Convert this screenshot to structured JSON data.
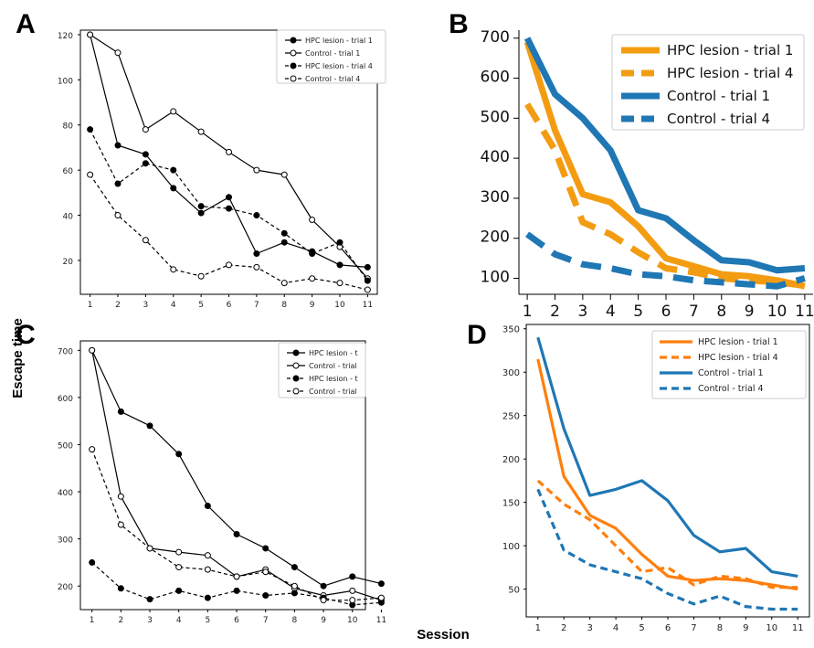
{
  "figure": {
    "y_label": "Escape time",
    "x_label": "Session"
  },
  "chart_data": [
    {
      "panel": "A",
      "type": "line",
      "x": [
        1,
        2,
        3,
        4,
        5,
        6,
        7,
        8,
        9,
        10,
        11
      ],
      "ylim": [
        5,
        122
      ],
      "yticks": [
        20,
        40,
        60,
        80,
        100,
        120
      ],
      "legend_position": "top-right",
      "series": [
        {
          "name": "HPC lesion - trial 1",
          "values": [
            120,
            71,
            67,
            52,
            41,
            48,
            23,
            28,
            24,
            18,
            17
          ],
          "color": "#000000",
          "dashed": false,
          "marker": "filled"
        },
        {
          "name": "Control - trial 1",
          "values": [
            120,
            112,
            78,
            86,
            77,
            68,
            60,
            58,
            38,
            26,
            12
          ],
          "color": "#000000",
          "dashed": false,
          "marker": "open"
        },
        {
          "name": "HPC lesion - trial 4",
          "values": [
            78,
            54,
            63,
            60,
            44,
            43,
            40,
            32,
            23,
            28,
            11
          ],
          "color": "#000000",
          "dashed": true,
          "marker": "filled"
        },
        {
          "name": "Control - trial 4",
          "values": [
            58,
            40,
            29,
            16,
            13,
            18,
            17,
            10,
            12,
            10,
            7
          ],
          "color": "#000000",
          "dashed": true,
          "marker": "open"
        }
      ]
    },
    {
      "panel": "B",
      "type": "line",
      "x": [
        1,
        2,
        3,
        4,
        5,
        6,
        7,
        8,
        9,
        10,
        11
      ],
      "ylim": [
        60,
        720
      ],
      "yticks": [
        100,
        200,
        300,
        400,
        500,
        600,
        700
      ],
      "legend_position": "top-right",
      "series": [
        {
          "name": "HPC lesion - trial 1",
          "values": [
            690,
            470,
            310,
            290,
            230,
            150,
            130,
            110,
            105,
            95,
            80
          ],
          "color": "#f39c12",
          "dashed": false
        },
        {
          "name": "HPC lesion - trial 4",
          "values": [
            535,
            420,
            240,
            210,
            165,
            125,
            115,
            100,
            95,
            90,
            82
          ],
          "color": "#f39c12",
          "dashed": true
        },
        {
          "name": "Control - trial 1",
          "values": [
            700,
            560,
            500,
            420,
            270,
            250,
            195,
            145,
            140,
            120,
            125
          ],
          "color": "#1f77b4",
          "dashed": false
        },
        {
          "name": "Control - trial 4",
          "values": [
            210,
            160,
            135,
            125,
            110,
            105,
            95,
            90,
            85,
            80,
            100
          ],
          "color": "#1f77b4",
          "dashed": true
        }
      ]
    },
    {
      "panel": "C",
      "type": "line",
      "x": [
        1,
        2,
        3,
        4,
        5,
        6,
        7,
        8,
        9,
        10,
        11
      ],
      "ylim": [
        150,
        720
      ],
      "yticks": [
        200,
        300,
        400,
        500,
        600,
        700
      ],
      "legend_position": "top-right",
      "series": [
        {
          "name": "HPC lesion - t",
          "values": [
            700,
            570,
            540,
            480,
            370,
            310,
            280,
            240,
            200,
            220,
            205
          ],
          "color": "#000000",
          "dashed": false,
          "marker": "filled"
        },
        {
          "name": "Control - trial",
          "values": [
            700,
            390,
            280,
            272,
            265,
            220,
            235,
            195,
            180,
            190,
            170
          ],
          "color": "#000000",
          "dashed": false,
          "marker": "open"
        },
        {
          "name": "HPC lesion - t",
          "values": [
            250,
            195,
            172,
            190,
            175,
            190,
            180,
            185,
            175,
            160,
            165
          ],
          "color": "#000000",
          "dashed": true,
          "marker": "filled"
        },
        {
          "name": "Control - trial",
          "values": [
            490,
            330,
            280,
            240,
            235,
            220,
            230,
            200,
            170,
            170,
            175
          ],
          "color": "#000000",
          "dashed": true,
          "marker": "open"
        }
      ]
    },
    {
      "panel": "D",
      "type": "line",
      "x": [
        1,
        2,
        3,
        4,
        5,
        6,
        7,
        8,
        9,
        10,
        11
      ],
      "ylim": [
        18,
        355
      ],
      "yticks": [
        50,
        100,
        150,
        200,
        250,
        300,
        350
      ],
      "legend_position": "top-right",
      "series": [
        {
          "name": "HPC lesion - trial 1",
          "values": [
            315,
            180,
            135,
            120,
            90,
            65,
            60,
            62,
            60,
            55,
            50
          ],
          "color": "#ff7f0e",
          "dashed": false
        },
        {
          "name": "HPC lesion - trial 4",
          "values": [
            175,
            148,
            130,
            100,
            70,
            75,
            55,
            65,
            62,
            52,
            52
          ],
          "color": "#ff7f0e",
          "dashed": true
        },
        {
          "name": "Control - trial 1",
          "values": [
            340,
            235,
            158,
            165,
            175,
            152,
            112,
            93,
            97,
            70,
            65
          ],
          "color": "#1f77b4",
          "dashed": false
        },
        {
          "name": "Control - trial 4",
          "values": [
            165,
            95,
            78,
            70,
            62,
            45,
            33,
            42,
            30,
            27,
            27
          ],
          "color": "#1f77b4",
          "dashed": true
        }
      ]
    }
  ]
}
